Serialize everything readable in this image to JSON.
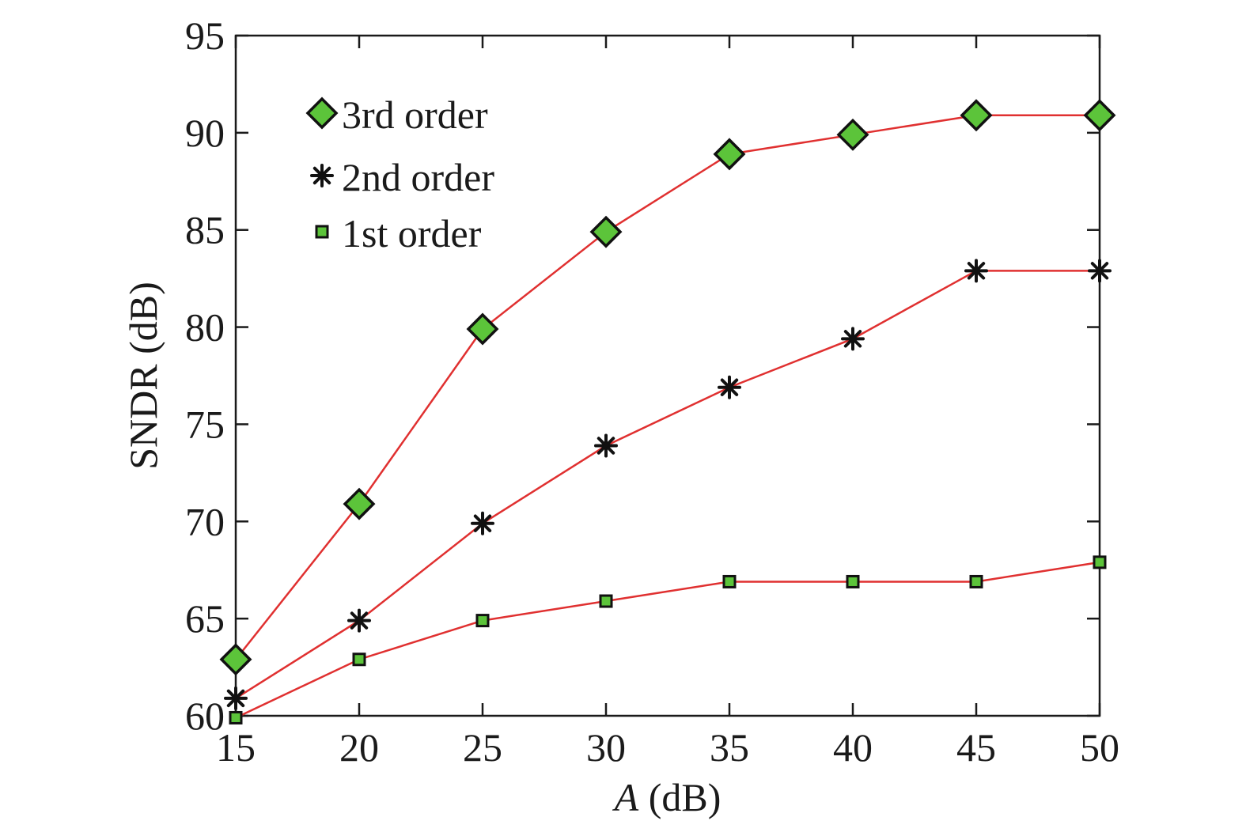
{
  "chart_data": {
    "type": "line",
    "title": "",
    "xlabel_italic": "A",
    "xlabel_rest": " (dB)",
    "ylabel": "SNDR (dB)",
    "xlim": [
      15,
      50
    ],
    "ylim": [
      60,
      95
    ],
    "x_ticks": [
      15,
      20,
      25,
      30,
      35,
      40,
      45,
      50
    ],
    "y_ticks": [
      60,
      65,
      70,
      75,
      80,
      85,
      90,
      95
    ],
    "x": [
      15,
      20,
      25,
      30,
      35,
      40,
      45,
      50
    ],
    "legend_position": "top-left",
    "grid": false,
    "line_color": "#e03030",
    "series": [
      {
        "name": "3rd order",
        "marker": "diamond",
        "marker_color": "#5cc43a",
        "values": [
          62.9,
          70.9,
          79.9,
          84.9,
          88.9,
          89.9,
          90.9,
          90.9
        ]
      },
      {
        "name": "2nd order",
        "marker": "asterisk",
        "marker_color": "#111111",
        "values": [
          60.9,
          64.9,
          69.9,
          73.9,
          76.9,
          79.4,
          82.9,
          82.9
        ]
      },
      {
        "name": "1st order",
        "marker": "square",
        "marker_color": "#5cc43a",
        "values": [
          59.9,
          62.9,
          64.9,
          65.9,
          66.9,
          66.9,
          66.9,
          67.9
        ]
      }
    ]
  }
}
